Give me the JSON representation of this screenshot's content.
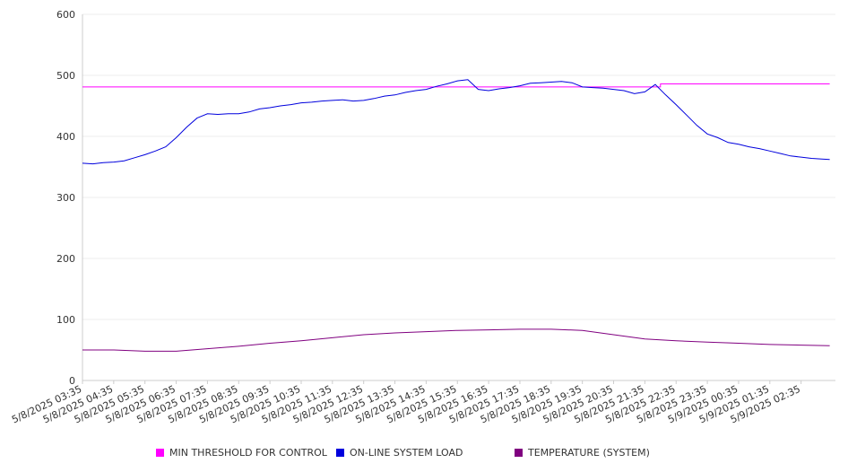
{
  "chart_data": {
    "type": "line",
    "title": "",
    "xlabel": "",
    "ylabel": "",
    "ylim": [
      0,
      600
    ],
    "yticks": [
      0,
      100,
      200,
      300,
      400,
      500,
      600
    ],
    "grid": true,
    "legend_position": "bottom",
    "x_tick_labels": [
      "5/8/2025 03:35",
      "5/8/2025 04:35",
      "5/8/2025 05:35",
      "5/8/2025 06:35",
      "5/8/2025 07:35",
      "5/8/2025 08:35",
      "5/8/2025 09:35",
      "5/8/2025 10:35",
      "5/8/2025 11:35",
      "5/8/2025 12:35",
      "5/8/2025 13:35",
      "5/8/2025 14:35",
      "5/8/2025 15:35",
      "5/8/2025 16:35",
      "5/8/2025 17:35",
      "5/8/2025 18:35",
      "5/8/2025 19:35",
      "5/8/2025 20:35",
      "5/8/2025 21:35",
      "5/8/2025 22:35",
      "5/8/2025 23:35",
      "5/9/2025 00:35",
      "5/9/2025 01:35",
      "5/9/2025 02:35"
    ],
    "series": [
      {
        "name": "MIN THRESHOLD FOR CONTROL",
        "color": "#ff00ff",
        "x": [
          "5/8/2025 03:35",
          "5/8/2025 22:05",
          "5/8/2025 22:05",
          "5/9/2025 03:30"
        ],
        "values": [
          481,
          481,
          486,
          486
        ]
      },
      {
        "name": "ON-LINE SYSTEM LOAD",
        "color": "#0000dd",
        "x": [
          "5/8/2025 03:35",
          "5/8/2025 03:55",
          "5/8/2025 04:15",
          "5/8/2025 04:35",
          "5/8/2025 04:55",
          "5/8/2025 05:15",
          "5/8/2025 05:35",
          "5/8/2025 05:55",
          "5/8/2025 06:15",
          "5/8/2025 06:35",
          "5/8/2025 06:55",
          "5/8/2025 07:15",
          "5/8/2025 07:35",
          "5/8/2025 07:55",
          "5/8/2025 08:15",
          "5/8/2025 08:35",
          "5/8/2025 08:55",
          "5/8/2025 09:15",
          "5/8/2025 09:35",
          "5/8/2025 09:55",
          "5/8/2025 10:15",
          "5/8/2025 10:35",
          "5/8/2025 10:55",
          "5/8/2025 11:15",
          "5/8/2025 11:35",
          "5/8/2025 11:55",
          "5/8/2025 12:15",
          "5/8/2025 12:35",
          "5/8/2025 12:55",
          "5/8/2025 13:15",
          "5/8/2025 13:35",
          "5/8/2025 13:55",
          "5/8/2025 14:15",
          "5/8/2025 14:35",
          "5/8/2025 14:55",
          "5/8/2025 15:15",
          "5/8/2025 15:35",
          "5/8/2025 15:55",
          "5/8/2025 16:15",
          "5/8/2025 16:35",
          "5/8/2025 16:55",
          "5/8/2025 17:15",
          "5/8/2025 17:35",
          "5/8/2025 17:55",
          "5/8/2025 18:15",
          "5/8/2025 18:35",
          "5/8/2025 18:55",
          "5/8/2025 19:15",
          "5/8/2025 19:35",
          "5/8/2025 19:55",
          "5/8/2025 20:15",
          "5/8/2025 20:35",
          "5/8/2025 20:55",
          "5/8/2025 21:15",
          "5/8/2025 21:35",
          "5/8/2025 21:55",
          "5/8/2025 22:15",
          "5/8/2025 22:35",
          "5/8/2025 22:55",
          "5/8/2025 23:15",
          "5/8/2025 23:35",
          "5/8/2025 23:55",
          "5/9/2025 00:15",
          "5/9/2025 00:35",
          "5/9/2025 00:55",
          "5/9/2025 01:15",
          "5/9/2025 01:35",
          "5/9/2025 01:55",
          "5/9/2025 02:15",
          "5/9/2025 02:35",
          "5/9/2025 02:55",
          "5/9/2025 03:15",
          "5/9/2025 03:30"
        ],
        "values": [
          356,
          355,
          357,
          358,
          360,
          365,
          370,
          376,
          383,
          398,
          415,
          430,
          437,
          436,
          437,
          437,
          440,
          445,
          447,
          450,
          452,
          455,
          456,
          458,
          459,
          460,
          458,
          459,
          462,
          466,
          468,
          472,
          475,
          477,
          482,
          486,
          491,
          493,
          477,
          475,
          478,
          480,
          483,
          487,
          488,
          489,
          490,
          488,
          481,
          480,
          479,
          477,
          475,
          470,
          473,
          485,
          468,
          452,
          435,
          418,
          404,
          398,
          390,
          387,
          383,
          380,
          376,
          372,
          368,
          366,
          364,
          363,
          362
        ]
      },
      {
        "name": "TEMPERATURE (SYSTEM)",
        "color": "#800080",
        "x": [
          "5/8/2025 03:35",
          "5/8/2025 04:35",
          "5/8/2025 05:35",
          "5/8/2025 06:35",
          "5/8/2025 07:35",
          "5/8/2025 08:35",
          "5/8/2025 09:35",
          "5/8/2025 10:35",
          "5/8/2025 11:35",
          "5/8/2025 12:35",
          "5/8/2025 13:35",
          "5/8/2025 14:35",
          "5/8/2025 15:35",
          "5/8/2025 16:35",
          "5/8/2025 17:35",
          "5/8/2025 18:35",
          "5/8/2025 19:35",
          "5/8/2025 20:35",
          "5/8/2025 21:35",
          "5/8/2025 22:35",
          "5/8/2025 23:35",
          "5/9/2025 00:35",
          "5/9/2025 01:35",
          "5/9/2025 02:35",
          "5/9/2025 03:30"
        ],
        "values": [
          50,
          50,
          48,
          48,
          52,
          56,
          61,
          65,
          70,
          75,
          78,
          80,
          82,
          83,
          84,
          84,
          82,
          75,
          68,
          65,
          63,
          61,
          59,
          58,
          57
        ]
      }
    ]
  }
}
